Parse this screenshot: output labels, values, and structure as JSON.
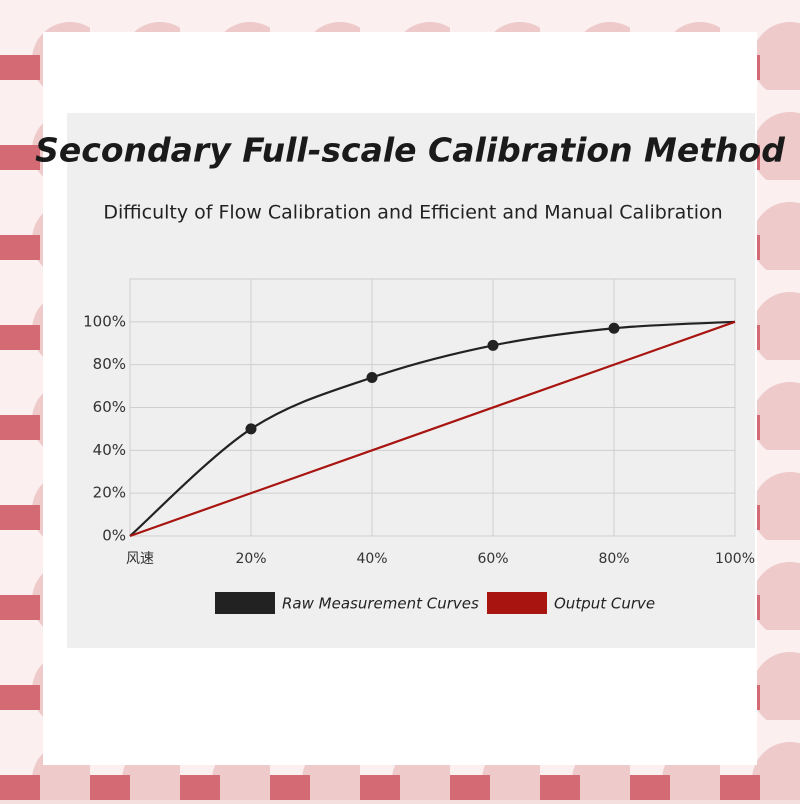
{
  "chart_data": {
    "type": "line",
    "title": "Secondary Full-scale Calibration Method",
    "subtitle": "Difficulty of Flow Calibration and Efficient and Manual Calibration",
    "xlim": [
      0,
      100
    ],
    "xticks": [
      {
        "value": 0,
        "label": "风速"
      },
      {
        "value": 20,
        "label": "20%"
      },
      {
        "value": 40,
        "label": "40%"
      },
      {
        "value": 60,
        "label": "60%"
      },
      {
        "value": 80,
        "label": "80%"
      },
      {
        "value": 100,
        "label": "100%"
      }
    ],
    "ylim": [
      0,
      120
    ],
    "yticks": [
      {
        "value": 0,
        "label": "0%"
      },
      {
        "value": 20,
        "label": "20%"
      },
      {
        "value": 40,
        "label": "40%"
      },
      {
        "value": 60,
        "label": "60%"
      },
      {
        "value": 80,
        "label": "80%"
      },
      {
        "value": 100,
        "label": "100%"
      }
    ],
    "grid": true,
    "series": [
      {
        "name": "Raw Measurement Curves",
        "color": "#222222",
        "x": [
          0,
          20,
          40,
          60,
          80,
          100
        ],
        "values": [
          0,
          50,
          74,
          89,
          97,
          100
        ]
      },
      {
        "name": "Output Curve",
        "color": "#a81410",
        "x": [
          0,
          100
        ],
        "values": [
          0,
          100
        ]
      }
    ]
  }
}
